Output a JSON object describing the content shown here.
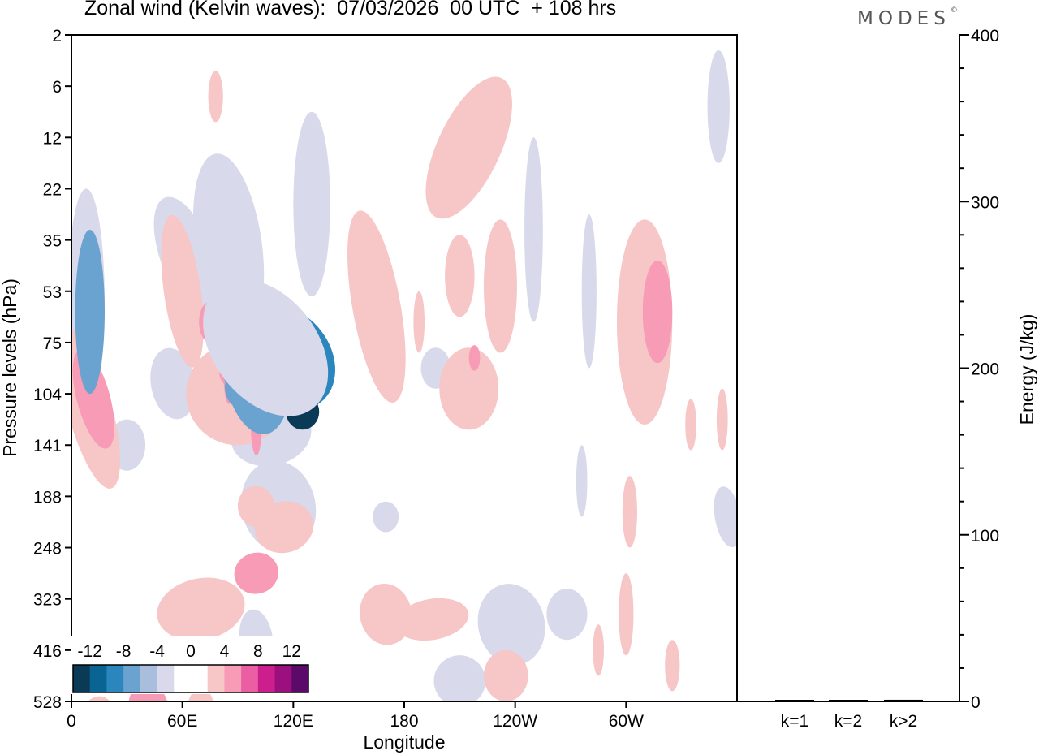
{
  "header": {
    "title": "Zonal wind (Kelvin waves):  07/03/2026  00 UTC  + 108 hrs",
    "logo_text": "MODES",
    "logo_mark": "©"
  },
  "chart_data": [
    {
      "type": "heatmap",
      "title": "Zonal wind (Kelvin waves):  07/03/2026  00 UTC  + 108 hrs",
      "xlabel": "Longitude",
      "ylabel": "Pressure levels (hPa)",
      "x_ticks": [
        "0",
        "60E",
        "120E",
        "180",
        "120W",
        "60W"
      ],
      "y_ticks": [
        "2",
        "6",
        "12",
        "22",
        "35",
        "53",
        "75",
        "104",
        "141",
        "188",
        "248",
        "323",
        "416",
        "528"
      ],
      "colorbar": {
        "labels": [
          "-12",
          "-8",
          "-4",
          "0",
          "4",
          "8",
          "12"
        ],
        "colors": [
          "#0b3a56",
          "#0a6493",
          "#2a86bd",
          "#6aa3cf",
          "#a9bedd",
          "#d8d9ea",
          "#ffffff",
          "#ffffff",
          "#f7c6c6",
          "#f79bb6",
          "#ea5ea3",
          "#cc1f8d",
          "#9b0f7e",
          "#5c0a6a"
        ]
      },
      "blobs": [
        {
          "lon": 125,
          "p": 7.35,
          "rx": 9,
          "ry": 0.35,
          "rot": 0,
          "value": -7
        },
        {
          "lon": 100,
          "p": 6.5,
          "rx": 18,
          "ry": 1.3,
          "rot": -8,
          "value": -3
        },
        {
          "lon": 170,
          "p": 9.4,
          "rx": 7,
          "ry": 0.3,
          "rot": 0,
          "value": -1
        },
        {
          "lon": 100,
          "p": 11.8,
          "rx": 9,
          "ry": 0.6,
          "rot": -8,
          "value": -1
        },
        {
          "lon": 112,
          "p": 9.2,
          "rx": 20,
          "ry": 0.9,
          "rot": -12,
          "value": -1
        },
        {
          "lon": 108,
          "p": 7.8,
          "rx": 22,
          "ry": 0.6,
          "rot": -14,
          "value": -1
        },
        {
          "lon": 92,
          "p": 6.9,
          "rx": 9,
          "ry": 0.4,
          "rot": -8,
          "value": -3
        },
        {
          "lon": 55,
          "p": 6.8,
          "rx": 12,
          "ry": 0.7,
          "rot": -10,
          "value": -1
        },
        {
          "lon": 62,
          "p": 4.3,
          "rx": 14,
          "ry": 1.2,
          "rot": -20,
          "value": -1
        },
        {
          "lon": 10,
          "p": 5.4,
          "rx": 8,
          "ry": 1.6,
          "rot": 0,
          "value": -3
        },
        {
          "lon": 8,
          "p": 5.2,
          "rx": 10,
          "ry": 2.2,
          "rot": 0,
          "value": -1
        },
        {
          "lon": 85,
          "p": 4.1,
          "rx": 18,
          "ry": 1.8,
          "rot": -8,
          "value": -1
        },
        {
          "lon": 130,
          "p": 3.3,
          "rx": 10,
          "ry": 1.8,
          "rot": 0,
          "value": -1
        },
        {
          "lon": 197,
          "p": 6.5,
          "rx": 8,
          "ry": 0.4,
          "rot": 0,
          "value": -1
        },
        {
          "lon": 238,
          "p": 11.5,
          "rx": 18,
          "ry": 0.8,
          "rot": -12,
          "value": -1
        },
        {
          "lon": 268,
          "p": 11.3,
          "rx": 11,
          "ry": 0.5,
          "rot": 0,
          "value": -1
        },
        {
          "lon": 280,
          "p": 5.0,
          "rx": 4,
          "ry": 1.5,
          "rot": 0,
          "value": -1
        },
        {
          "lon": 210,
          "p": 12.6,
          "rx": 14,
          "ry": 0.5,
          "rot": 0,
          "value": -1
        },
        {
          "lon": 250,
          "p": 3.8,
          "rx": 5,
          "ry": 1.8,
          "rot": 0,
          "value": -1
        },
        {
          "lon": 276,
          "p": 8.7,
          "rx": 3,
          "ry": 0.7,
          "rot": 0,
          "value": -1
        },
        {
          "lon": 350,
          "p": 1.4,
          "rx": 6,
          "ry": 1.1,
          "rot": 0,
          "value": -1
        },
        {
          "lon": 355,
          "p": 9.4,
          "rx": 7,
          "ry": 0.6,
          "rot": -10,
          "value": -1
        },
        {
          "lon": 30,
          "p": 8.0,
          "rx": 10,
          "ry": 0.5,
          "rot": 0,
          "value": -1
        },
        {
          "lon": 15,
          "p": 13.2,
          "rx": 8,
          "ry": 0.3,
          "rot": 0,
          "value": 1
        },
        {
          "lon": 42,
          "p": 13.2,
          "rx": 11,
          "ry": 0.6,
          "rot": -10,
          "value": 2
        },
        {
          "lon": 70,
          "p": 13.1,
          "rx": 7,
          "ry": 0.35,
          "rot": 0,
          "value": 1
        },
        {
          "lon": 70,
          "p": 11.2,
          "rx": 24,
          "ry": 0.6,
          "rot": -12,
          "value": 1
        },
        {
          "lon": 100,
          "p": 10.5,
          "rx": 12,
          "ry": 0.4,
          "rot": -18,
          "value": 2
        },
        {
          "lon": 115,
          "p": 9.6,
          "rx": 16,
          "ry": 0.5,
          "rot": -15,
          "value": 1
        },
        {
          "lon": 100,
          "p": 9.2,
          "rx": 10,
          "ry": 0.4,
          "rot": -10,
          "value": 1
        },
        {
          "lon": 10,
          "p": 7.3,
          "rx": 12,
          "ry": 1.6,
          "rot": -15,
          "value": 1
        },
        {
          "lon": 12,
          "p": 7.1,
          "rx": 9,
          "ry": 1.0,
          "rot": -15,
          "value": 2
        },
        {
          "lon": 90,
          "p": 7.0,
          "rx": 28,
          "ry": 1.0,
          "rot": -25,
          "value": 1
        },
        {
          "lon": 90,
          "p": 6.6,
          "rx": 10,
          "ry": 0.3,
          "rot": 0,
          "value": 2
        },
        {
          "lon": 60,
          "p": 5.0,
          "rx": 10,
          "ry": 1.5,
          "rot": -8,
          "value": 1
        },
        {
          "lon": 75,
          "p": 5.6,
          "rx": 6,
          "ry": 0.4,
          "rot": 0,
          "value": 2
        },
        {
          "lon": 85,
          "p": 6.4,
          "rx": 3,
          "ry": 0.8,
          "rot": 0,
          "value": 2
        },
        {
          "lon": 100,
          "p": 7.6,
          "rx": 3,
          "ry": 0.6,
          "rot": 0,
          "value": 2
        },
        {
          "lon": 165,
          "p": 5.3,
          "rx": 13,
          "ry": 1.9,
          "rot": -10,
          "value": 1
        },
        {
          "lon": 215,
          "p": 6.9,
          "rx": 16,
          "ry": 0.8,
          "rot": 0,
          "value": 1
        },
        {
          "lon": 218,
          "p": 6.3,
          "rx": 3,
          "ry": 0.25,
          "rot": 0,
          "value": 2
        },
        {
          "lon": 232,
          "p": 4.9,
          "rx": 9,
          "ry": 1.3,
          "rot": 0,
          "value": 1
        },
        {
          "lon": 210,
          "p": 4.7,
          "rx": 8,
          "ry": 0.8,
          "rot": 0,
          "value": 1
        },
        {
          "lon": 188,
          "p": 5.6,
          "rx": 3,
          "ry": 0.6,
          "rot": 0,
          "value": 1
        },
        {
          "lon": 310,
          "p": 5.6,
          "rx": 15,
          "ry": 2.0,
          "rot": 0,
          "value": 1
        },
        {
          "lon": 317,
          "p": 5.4,
          "rx": 8,
          "ry": 1.0,
          "rot": 0,
          "value": 2
        },
        {
          "lon": 335,
          "p": 7.6,
          "rx": 3,
          "ry": 0.5,
          "rot": 0,
          "value": 1
        },
        {
          "lon": 352,
          "p": 7.5,
          "rx": 3,
          "ry": 0.6,
          "rot": 0,
          "value": 1
        },
        {
          "lon": 215,
          "p": 2.2,
          "rx": 17,
          "ry": 1.5,
          "rot": 25,
          "value": 1
        },
        {
          "lon": 78,
          "p": 1.2,
          "rx": 4,
          "ry": 0.5,
          "rot": 0,
          "value": 1
        },
        {
          "lon": 170,
          "p": 11.3,
          "rx": 14,
          "ry": 0.6,
          "rot": -10,
          "value": 1
        },
        {
          "lon": 195,
          "p": 11.4,
          "rx": 20,
          "ry": 0.4,
          "rot": -10,
          "value": 1
        },
        {
          "lon": 235,
          "p": 12.5,
          "rx": 12,
          "ry": 0.5,
          "rot": 0,
          "value": 1
        },
        {
          "lon": 285,
          "p": 12.0,
          "rx": 3,
          "ry": 0.5,
          "rot": 0,
          "value": 1
        },
        {
          "lon": 300,
          "p": 11.3,
          "rx": 4,
          "ry": 0.8,
          "rot": 0,
          "value": 1
        },
        {
          "lon": 325,
          "p": 12.3,
          "rx": 4,
          "ry": 0.5,
          "rot": 0,
          "value": 1
        },
        {
          "lon": 302,
          "p": 9.3,
          "rx": 4,
          "ry": 0.7,
          "rot": 0,
          "value": 1
        }
      ],
      "core_minus": [
        {
          "lon": 116,
          "p": 6.3,
          "rx": 24,
          "ry": 1.1,
          "rot": -38,
          "value": -4
        },
        {
          "lon": 116,
          "p": 6.3,
          "rx": 20,
          "ry": 0.85,
          "rot": -38,
          "value": -6
        },
        {
          "lon": 116,
          "p": 6.3,
          "rx": 16,
          "ry": 0.65,
          "rot": -38,
          "value": -8
        },
        {
          "lon": 116,
          "p": 6.3,
          "rx": 12,
          "ry": 0.45,
          "rot": -38,
          "value": -10
        },
        {
          "lon": 116,
          "p": 6.25,
          "rx": 6,
          "ry": 0.25,
          "rot": -38,
          "value": -12
        },
        {
          "lon": 105,
          "p": 6.1,
          "rx": 28,
          "ry": 1.5,
          "rot": -38,
          "value": -1
        }
      ]
    },
    {
      "type": "bar",
      "title": "",
      "xlabel": "",
      "ylabel": "Energy (J/kg)",
      "categories": [
        "k=1",
        "k=2",
        "k>2"
      ],
      "values": [
        0.5,
        0.5,
        1.0
      ],
      "ylim": [
        0,
        400
      ],
      "y_ticks": [
        "0",
        "100",
        "200",
        "300",
        "400"
      ]
    }
  ]
}
